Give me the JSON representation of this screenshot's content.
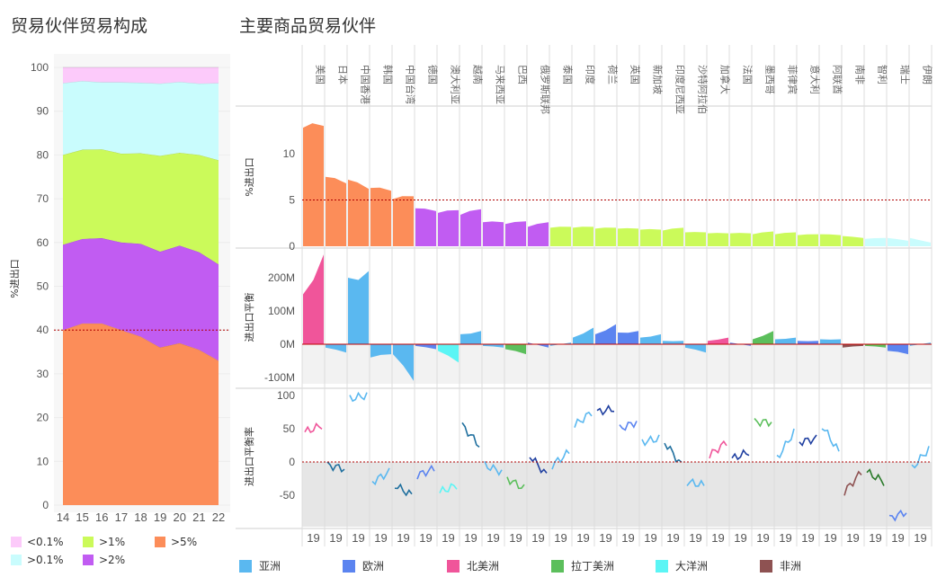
{
  "titles": {
    "left": "贸易伙伴贸易构成",
    "right": "主要商品贸易伙伴"
  },
  "chart_data": [
    {
      "type": "area",
      "name": "composition",
      "title": "贸易伙伴贸易构成",
      "ylabel": "%进出口",
      "x": [
        "14",
        "15",
        "16",
        "17",
        "18",
        "19",
        "20",
        "21",
        "22"
      ],
      "ylim": [
        0,
        100
      ],
      "yticks": [
        0,
        10,
        20,
        30,
        40,
        50,
        60,
        70,
        80,
        90,
        100
      ],
      "reference_line": 40,
      "series": [
        {
          "name": ">5%",
          "color": "#fc8d59",
          "values": [
            40,
            41.5,
            41.5,
            40,
            38.5,
            36,
            37,
            35.5,
            33
          ]
        },
        {
          "name": ">2%",
          "color": "#c15cf2",
          "values": [
            19.5,
            19.3,
            19.5,
            20,
            21.2,
            21.9,
            22.3,
            22.3,
            22
          ]
        },
        {
          "name": ">1%",
          "color": "#cbfa5a",
          "values": [
            20.5,
            20.4,
            20.3,
            20.3,
            20.7,
            21.9,
            21.2,
            22.2,
            23.8
          ]
        },
        {
          "name": ">0.1%",
          "color": "#c9fcfd",
          "values": [
            16.4,
            15.7,
            15.3,
            16.3,
            16.1,
            16.5,
            16.2,
            16.3,
            17.6
          ]
        },
        {
          "name": "<0.1%",
          "color": "#fccafa",
          "values": [
            3.6,
            3.1,
            3.4,
            3.4,
            3.5,
            3.7,
            3.3,
            3.7,
            3.6
          ]
        }
      ],
      "legend": [
        "<0.1%",
        ">1%",
        ">5%",
        ">0.1%",
        ">2%"
      ]
    },
    {
      "type": "area",
      "name": "major_partners",
      "title": "主要商品贸易伙伴",
      "year_label": "19",
      "partners": [
        "美国",
        "日本",
        "中国香港",
        "韩国",
        "中国台湾",
        "德国",
        "澳大利亚",
        "越南",
        "马来西亚",
        "巴西",
        "俄罗斯联邦",
        "泰国",
        "印度",
        "荷兰",
        "英国",
        "新加坡",
        "印度尼西亚",
        "沙特阿拉伯",
        "加拿大",
        "法国",
        "墨西哥",
        "菲律宾",
        "意大利",
        "阿联酋",
        "南非",
        "智利",
        "瑞士",
        "伊朗"
      ],
      "region_of_partner": [
        "北美洲",
        "亚洲",
        "亚洲",
        "亚洲",
        "亚洲",
        "欧洲",
        "大洋洲",
        "亚洲",
        "亚洲",
        "拉丁美洲",
        "欧洲",
        "亚洲",
        "亚洲",
        "欧洲",
        "欧洲",
        "亚洲",
        "亚洲",
        "亚洲",
        "北美洲",
        "欧洲",
        "拉丁美洲",
        "亚洲",
        "欧洲",
        "亚洲",
        "非洲",
        "拉丁美洲",
        "欧洲",
        "亚洲"
      ],
      "panels": [
        {
          "ylabel": "%进出口",
          "yticks": [
            0,
            5,
            10
          ],
          "reference_line": 5,
          "share_start": [
            12.8,
            7.5,
            7.2,
            6.3,
            5.1,
            4.1,
            3.6,
            3.4,
            2.6,
            2.4,
            2.1,
            2.0,
            2.0,
            1.9,
            1.9,
            1.8,
            1.7,
            1.5,
            1.4,
            1.4,
            1.3,
            1.3,
            1.2,
            1.3,
            1.1,
            0.8,
            0.9,
            0.9
          ],
          "share_end": [
            13.0,
            6.8,
            6.2,
            6.0,
            5.4,
            3.8,
            3.9,
            4.0,
            2.6,
            2.7,
            2.6,
            2.1,
            2.1,
            2.0,
            1.9,
            1.8,
            2.0,
            1.5,
            1.4,
            1.4,
            1.6,
            1.5,
            1.3,
            1.2,
            0.9,
            0.9,
            0.6,
            0.4
          ],
          "size_class": [
            ">5%",
            ">5%",
            ">5%",
            ">5%",
            ">5%",
            ">2%",
            ">2%",
            ">2%",
            ">2%",
            ">2%",
            ">2%",
            ">1%",
            ">1%",
            ">1%",
            ">1%",
            ">1%",
            ">1%",
            ">1%",
            ">1%",
            ">1%",
            ">1%",
            ">1%",
            ">1%",
            ">1%",
            ">1%",
            ">0.1%",
            ">0.1%",
            ">0.1%"
          ]
        },
        {
          "ylabel": "进出口平衡",
          "yticks": [
            "-100M",
            "0M",
            "100M",
            "200M"
          ],
          "ytick_values": [
            -100,
            0,
            100,
            200
          ],
          "balance_start": [
            150,
            -10,
            200,
            -40,
            -30,
            -5,
            -20,
            30,
            -5,
            -15,
            5,
            -5,
            20,
            30,
            35,
            20,
            10,
            -10,
            10,
            5,
            15,
            15,
            10,
            15,
            -10,
            -5,
            -20,
            -5
          ],
          "balance_end": [
            270,
            -25,
            220,
            -30,
            -110,
            -15,
            -55,
            40,
            -10,
            -30,
            -10,
            5,
            50,
            60,
            40,
            30,
            10,
            -25,
            20,
            -5,
            40,
            20,
            10,
            15,
            -5,
            -10,
            -30,
            5
          ]
        },
        {
          "ylabel": "进出口平衡率",
          "yticks": [
            -50,
            0,
            50,
            100
          ],
          "rate_start": [
            45,
            -5,
            95,
            -30,
            -35,
            -20,
            -45,
            55,
            -5,
            -25,
            10,
            -5,
            55,
            75,
            50,
            30,
            30,
            -30,
            10,
            5,
            60,
            5,
            30,
            55,
            -45,
            -15,
            -85,
            -10
          ],
          "rate_end": [
            55,
            -10,
            100,
            -15,
            -50,
            -10,
            -35,
            25,
            -15,
            -40,
            -20,
            15,
            75,
            80,
            60,
            35,
            -5,
            -35,
            30,
            15,
            60,
            45,
            35,
            15,
            -15,
            -30,
            -75,
            20
          ]
        }
      ],
      "legend": [
        {
          "name": "亚洲",
          "color": "#5ab8f0"
        },
        {
          "name": "欧洲",
          "color": "#5b84f0"
        },
        {
          "name": "北美洲",
          "color": "#f0559a"
        },
        {
          "name": "拉丁美洲",
          "color": "#5cbf5c"
        },
        {
          "name": "大洋洲",
          "color": "#5bf5f5"
        },
        {
          "name": "非洲",
          "color": "#8e5252"
        }
      ]
    }
  ],
  "legends": {
    "left": [
      "<0.1%",
      ">1%",
      ">5%",
      ">0.1%",
      ">2%"
    ],
    "right": [
      "亚洲",
      "欧洲",
      "北美洲",
      "拉丁美洲",
      "大洋洲",
      "非洲"
    ]
  }
}
